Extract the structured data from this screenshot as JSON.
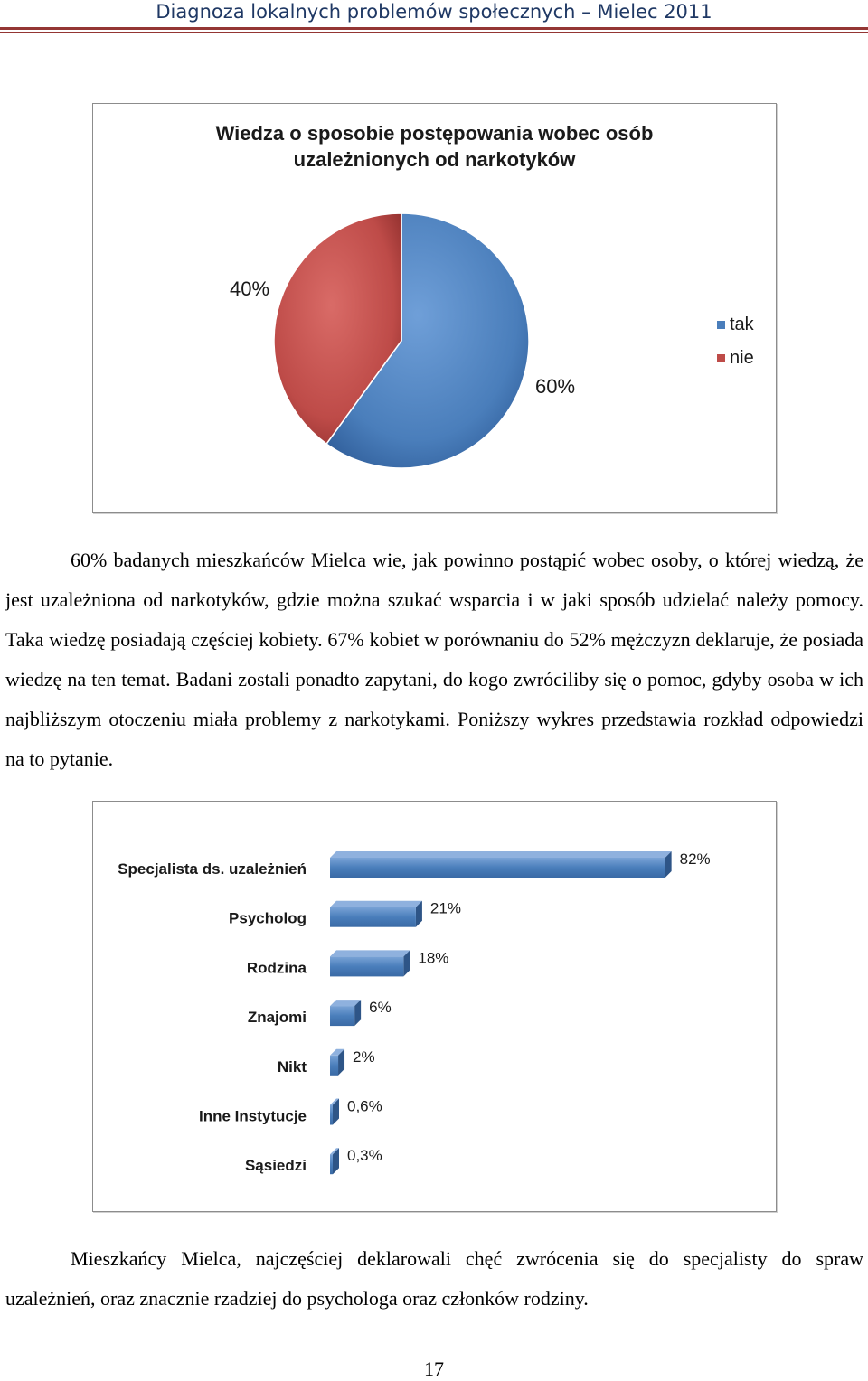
{
  "header": {
    "title": "Diagnoza lokalnych problemów społecznych – Mielec 2011"
  },
  "pie_chart": {
    "title_line1": "Wiedza o sposobie postępowania wobec osób",
    "title_line2": "uzależnionych od narkotyków",
    "colors": {
      "tak": "#4a7ebb",
      "nie": "#be4b48"
    }
  },
  "paragraph1": "60% badanych mieszkańców Mielca wie, jak powinno postąpić wobec osoby, o której wiedzą, że jest uzależniona od narkotyków, gdzie można szukać wsparcia i w jaki sposób udzielać należy pomocy. Taka wiedzę posiadają częściej kobiety. 67% kobiet w porównaniu do 52% mężczyzn deklaruje, że posiada wiedzę na ten temat. Badani zostali ponadto zapytani, do kogo zwróciliby się o pomoc, gdyby osoba w ich najbliższym otoczeniu miała problemy z narkotykami. Poniższy wykres przedstawia rozkład odpowiedzi na to pytanie.",
  "bar_chart": {
    "color": "#4a7ebb"
  },
  "paragraph2": "Mieszkańcy Mielca, najczęściej deklarowali chęć zwrócenia się do specjalisty do spraw uzależnień, oraz znacznie rzadziej do psychologa oraz członków rodziny.",
  "page_number": "17",
  "chart_data": [
    {
      "type": "pie",
      "title": "Wiedza o sposobie postępowania wobec osób uzależnionych od narkotyków",
      "categories": [
        "tak",
        "nie"
      ],
      "values": [
        60,
        40
      ],
      "labels": [
        "60%",
        "40%"
      ],
      "legend": [
        "tak",
        "nie"
      ],
      "legend_position": "right"
    },
    {
      "type": "bar",
      "orientation": "horizontal",
      "categories": [
        "Specjalista ds. uzależnień",
        "Psycholog",
        "Rodzina",
        "Znajomi",
        "Nikt",
        "Inne Instytucje",
        "Sąsiedzi"
      ],
      "values": [
        82,
        21,
        18,
        6,
        2,
        0.6,
        0.3
      ],
      "labels": [
        "82%",
        "21%",
        "18%",
        "6%",
        "2%",
        "0,6%",
        "0,3%"
      ],
      "style": "3d",
      "grid": false
    }
  ]
}
